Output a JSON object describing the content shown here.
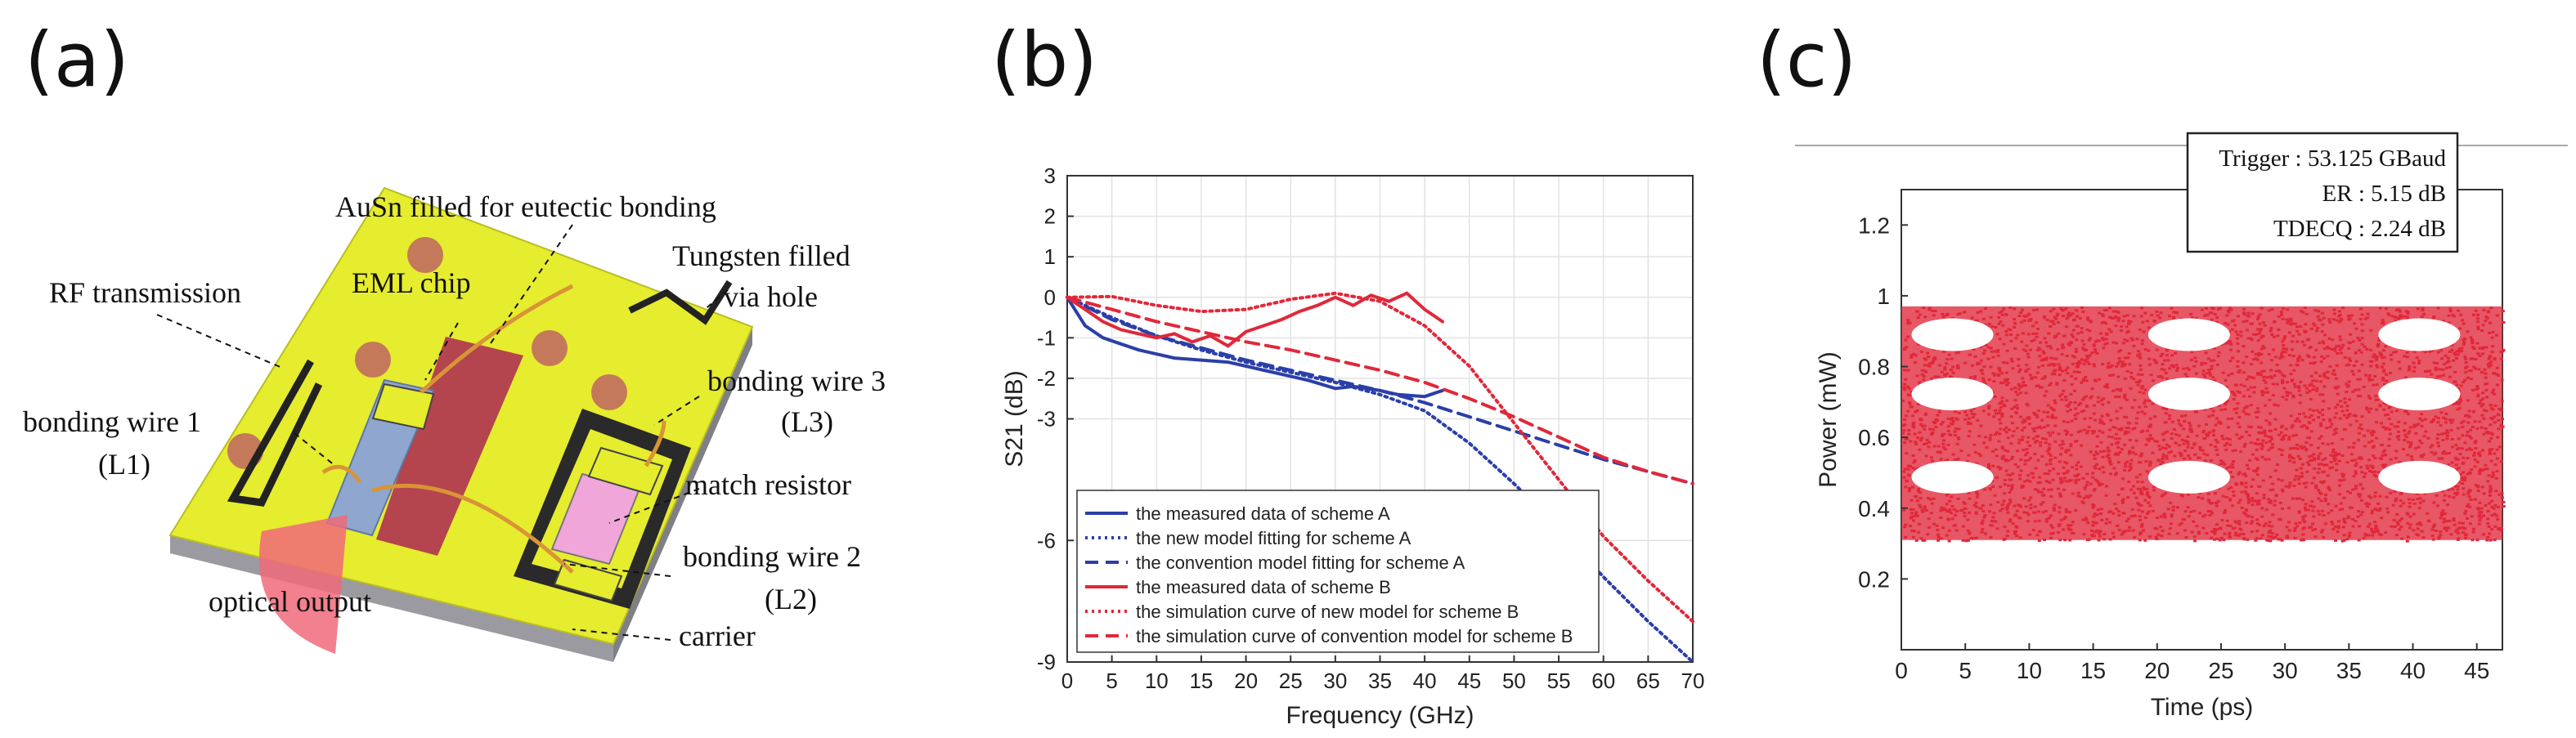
{
  "panels": {
    "a": "(a)",
    "b": "(b)",
    "c": "(c)"
  },
  "diagram_a": {
    "labels": {
      "ausn": "AuSn filled for eutectic bonding",
      "tungsten_line1": "Tungsten filled",
      "tungsten_line2": "via hole",
      "rf": "RF transmission",
      "eml": "EML chip",
      "bw1_line1": "bonding wire 1",
      "bw1_line2": "(L1)",
      "bw3_line1": "bonding wire 3",
      "bw3_line2": "(L3)",
      "match": "match resistor",
      "bw2_line1": "bonding wire 2",
      "bw2_line2": "(L2)",
      "optical": "optical output",
      "carrier": "carrier"
    },
    "colors": {
      "substrate": "#e6ec2e",
      "pad": "#c47a5a",
      "red_region": "#b4444e",
      "chip": "#8fa6cf",
      "resistor": "#f0a6d8",
      "carrier_side": "#9a9aa0",
      "beam": "#f06a7a"
    }
  },
  "chart_data": [
    {
      "type": "line",
      "xlabel": "Frequency (GHz)",
      "ylabel": "S21 (dB)",
      "xlim": [
        0,
        70
      ],
      "ylim": [
        -9,
        3
      ],
      "xticks": [
        0,
        5,
        10,
        15,
        20,
        25,
        30,
        35,
        40,
        45,
        50,
        55,
        60,
        65,
        70
      ],
      "yticks": [
        3,
        2,
        1,
        0,
        -1,
        -2,
        -3,
        -6,
        -9
      ],
      "grid": true,
      "legend_position": "bottom",
      "series": [
        {
          "name": "the measured data of scheme A",
          "color": "#2b3fa8",
          "style": "solid",
          "x": [
            0,
            1,
            2,
            4,
            6,
            8,
            10,
            12,
            15,
            18,
            20,
            22,
            25,
            27,
            30,
            32,
            35,
            37,
            40,
            42
          ],
          "y": [
            0,
            -0.35,
            -0.7,
            -1.0,
            -1.15,
            -1.3,
            -1.4,
            -1.5,
            -1.55,
            -1.6,
            -1.7,
            -1.8,
            -1.95,
            -2.05,
            -2.25,
            -2.2,
            -2.3,
            -2.4,
            -2.45,
            -2.3
          ]
        },
        {
          "name": "the new model fitting for scheme A",
          "color": "#2b3fa8",
          "style": "dotted",
          "x": [
            0,
            5,
            10,
            15,
            20,
            25,
            30,
            35,
            40,
            45,
            50,
            55,
            60,
            65,
            70
          ],
          "y": [
            0,
            -0.5,
            -0.95,
            -1.3,
            -1.6,
            -1.85,
            -2.1,
            -2.4,
            -2.8,
            -3.6,
            -4.6,
            -5.7,
            -6.9,
            -8.0,
            -9.0
          ]
        },
        {
          "name": "the convention model fitting for scheme A",
          "color": "#2b3fa8",
          "style": "dashed",
          "x": [
            0,
            5,
            10,
            15,
            20,
            25,
            30,
            35,
            40,
            45,
            50,
            55,
            60,
            65,
            70
          ],
          "y": [
            0,
            -0.55,
            -0.95,
            -1.25,
            -1.55,
            -1.8,
            -2.05,
            -2.3,
            -2.6,
            -2.95,
            -3.3,
            -3.65,
            -4.0,
            -4.3,
            -4.6
          ]
        },
        {
          "name": "the measured data of scheme B",
          "color": "#e0283a",
          "style": "solid",
          "x": [
            0,
            2,
            4,
            6,
            8,
            10,
            12,
            14,
            16,
            18,
            20,
            22,
            24,
            26,
            28,
            30,
            32,
            34,
            36,
            38,
            40,
            42
          ],
          "y": [
            0,
            -0.3,
            -0.6,
            -0.8,
            -0.9,
            -1.0,
            -0.9,
            -1.1,
            -0.95,
            -1.2,
            -0.85,
            -0.7,
            -0.55,
            -0.35,
            -0.2,
            0.0,
            -0.2,
            0.05,
            -0.1,
            0.1,
            -0.3,
            -0.6
          ]
        },
        {
          "name": "the simulation curve of new model for scheme B",
          "color": "#e0283a",
          "style": "dotted",
          "x": [
            0,
            5,
            10,
            15,
            20,
            25,
            30,
            35,
            40,
            45,
            50,
            55,
            60,
            65,
            70
          ],
          "y": [
            0,
            0.02,
            -0.2,
            -0.35,
            -0.3,
            -0.05,
            0.1,
            -0.1,
            -0.7,
            -1.7,
            -3.1,
            -4.5,
            -5.9,
            -7.0,
            -8.0
          ]
        },
        {
          "name": "the simulation curve of convention model for scheme B",
          "color": "#e0283a",
          "style": "dashed",
          "x": [
            0,
            5,
            10,
            15,
            20,
            25,
            30,
            35,
            40,
            45,
            50,
            55,
            60,
            65,
            70
          ],
          "y": [
            0,
            -0.3,
            -0.6,
            -0.85,
            -1.1,
            -1.3,
            -1.55,
            -1.8,
            -2.1,
            -2.5,
            -2.95,
            -3.45,
            -3.95,
            -4.3,
            -4.6
          ]
        }
      ]
    },
    {
      "type": "scatter",
      "xlabel": "Time (ps)",
      "ylabel": "Power (mW)",
      "xlim": [
        0,
        47
      ],
      "ylim": [
        0,
        1.3
      ],
      "xticks": [
        0,
        5,
        10,
        15,
        20,
        25,
        30,
        35,
        40,
        45
      ],
      "yticks": [
        0.2,
        0.4,
        0.6,
        0.8,
        1,
        1.2
      ],
      "color": "#e0283a",
      "band": [
        0.31,
        0.97
      ],
      "levels": [
        0.355,
        0.62,
        0.825,
        0.955
      ],
      "eye_centers_x": [
        4,
        22.5,
        40.5
      ],
      "annotations": [
        "Trigger : 53.125 GBaud",
        "ER : 5.15 dB",
        "TDECQ : 2.24 dB"
      ]
    }
  ]
}
